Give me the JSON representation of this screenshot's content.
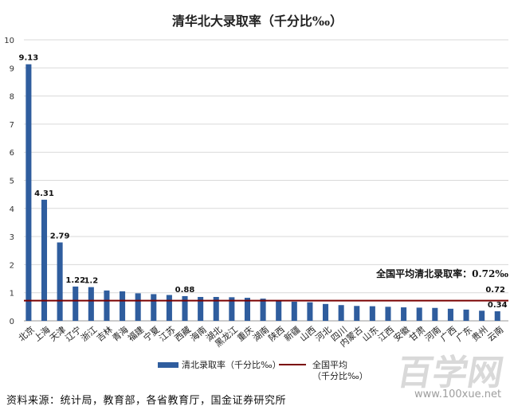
{
  "chart_data": {
    "type": "bar",
    "title": "清华北大录取率（千分比‰）",
    "categories": [
      "北京",
      "上海",
      "天津",
      "辽宁",
      "浙江",
      "吉林",
      "青海",
      "福建",
      "宁夏",
      "江苏",
      "西藏",
      "海南",
      "湖北",
      "黑龙江",
      "重庆",
      "湖南",
      "陕西",
      "新疆",
      "山西",
      "河北",
      "四川",
      "内蒙古",
      "山东",
      "江西",
      "安徽",
      "甘肃",
      "河南",
      "广西",
      "广东",
      "贵州",
      "云南"
    ],
    "series": [
      {
        "name": "清北录取率（千分比‰）",
        "values": [
          9.13,
          4.31,
          2.79,
          1.22,
          1.2,
          1.08,
          1.05,
          0.98,
          0.95,
          0.92,
          0.88,
          0.85,
          0.85,
          0.84,
          0.82,
          0.79,
          0.7,
          0.68,
          0.66,
          0.6,
          0.56,
          0.53,
          0.52,
          0.5,
          0.48,
          0.47,
          0.46,
          0.43,
          0.4,
          0.36,
          0.34
        ],
        "color": "#2f5d9e"
      },
      {
        "name": "全国平均 （千分比‰）",
        "type": "line",
        "value": 0.72,
        "color": "#7a0000"
      }
    ],
    "data_labels": [
      {
        "index": 0,
        "text": "9.13"
      },
      {
        "index": 1,
        "text": "4.31"
      },
      {
        "index": 2,
        "text": "2.79"
      },
      {
        "index": 3,
        "text": "1.22"
      },
      {
        "index": 4,
        "text": "1.2"
      },
      {
        "index": 10,
        "text": "0.88"
      },
      {
        "index": 30,
        "text": "0.34"
      }
    ],
    "average_label": "0.72",
    "annotation": "全国平均清北录取率：0.72‰",
    "ylim": [
      0,
      10
    ],
    "yticks": [
      0,
      1,
      2,
      3,
      4,
      5,
      6,
      7,
      8,
      9,
      10
    ],
    "grid": true,
    "legend_position": "bottom"
  },
  "footer_source": "资料来源：统计局，教育部，各省教育厅，国金证券研究所",
  "watermark": {
    "text": "百学网",
    "url": "www.100xue.net"
  }
}
